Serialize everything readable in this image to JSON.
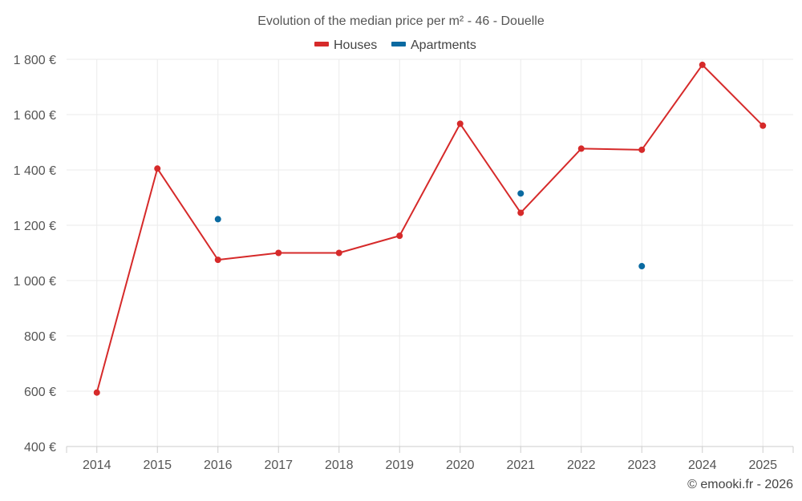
{
  "chart_data": {
    "type": "line",
    "title": "Evolution of the median price per m² - 46 - Douelle",
    "categories": [
      "2014",
      "2015",
      "2016",
      "2017",
      "2018",
      "2019",
      "2020",
      "2021",
      "2022",
      "2023",
      "2024",
      "2025"
    ],
    "ylim": [
      400,
      1800
    ],
    "yticks": [
      400,
      600,
      800,
      1000,
      1200,
      1400,
      1600,
      1800
    ],
    "ytick_labels": [
      "400 €",
      "600 €",
      "800 €",
      "1 000 €",
      "1 200 €",
      "1 400 €",
      "1 600 €",
      "1 800 €"
    ],
    "legend_position": "top-center",
    "grid": true,
    "series": [
      {
        "name": "Houses",
        "color": "#d62a2a",
        "line": true,
        "values": [
          595,
          1405,
          1075,
          1100,
          1100,
          1162,
          1567,
          1245,
          1477,
          1473,
          1780,
          1560
        ]
      },
      {
        "name": "Apartments",
        "color": "#0a6aa1",
        "line": false,
        "values": [
          null,
          null,
          1222,
          null,
          null,
          null,
          null,
          1315,
          null,
          1052,
          null,
          null
        ]
      }
    ],
    "credit": "© emooki.fr - 2026"
  }
}
